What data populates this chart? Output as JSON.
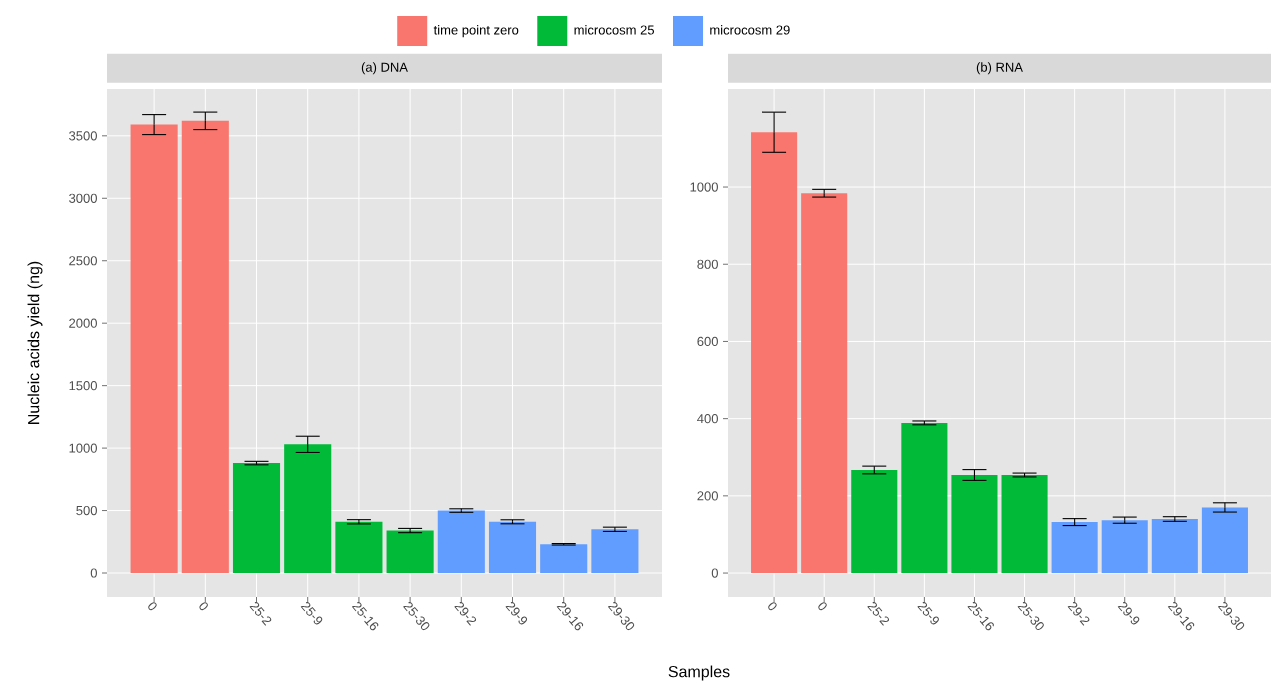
{
  "chart_data": [
    {
      "type": "bar",
      "title": "(a) DNA",
      "xlabel": "Samples",
      "ylabel": "Nucleic acids yield (ng)",
      "legend": "top",
      "grid": true,
      "categories": [
        "0",
        "0",
        "25-2",
        "25-9",
        "25-16",
        "25-30",
        "29-2",
        "29-9",
        "29-16",
        "29-30"
      ],
      "ylim": [
        -192,
        3875
      ],
      "yticks": [
        0,
        500,
        1000,
        1500,
        2000,
        2500,
        3000,
        3500
      ],
      "series": [
        {
          "name": "time point zero",
          "color": "#f8766d",
          "values": [
            3590,
            3620,
            null,
            null,
            null,
            null,
            null,
            null,
            null,
            null
          ],
          "errors": [
            80,
            70,
            null,
            null,
            null,
            null,
            null,
            null,
            null,
            null
          ]
        },
        {
          "name": "microcosm 25",
          "color": "#00ba38",
          "values": [
            null,
            null,
            880,
            1030,
            410,
            340,
            null,
            null,
            null,
            null
          ],
          "errors": [
            null,
            null,
            14,
            65,
            17,
            17,
            null,
            null,
            null,
            null
          ]
        },
        {
          "name": "microcosm 29",
          "color": "#619cff",
          "values": [
            null,
            null,
            null,
            null,
            null,
            null,
            500,
            410,
            230,
            350
          ],
          "errors": [
            null,
            null,
            null,
            null,
            null,
            null,
            14,
            16,
            6,
            17
          ]
        }
      ]
    },
    {
      "type": "bar",
      "title": "(b) RNA",
      "grid": true,
      "categories": [
        "0",
        "0",
        "25-2",
        "25-9",
        "25-16",
        "25-30",
        "29-2",
        "29-9",
        "29-16",
        "29-30"
      ],
      "ylim": [
        -62,
        1254
      ],
      "yticks": [
        0,
        200,
        400,
        600,
        800,
        1000
      ],
      "series": [
        {
          "color": "#f8766d",
          "values": [
            1142,
            984,
            null,
            null,
            null,
            null,
            null,
            null,
            null,
            null
          ],
          "errors": [
            52,
            10,
            null,
            null,
            null,
            null,
            null,
            null,
            null,
            null
          ]
        },
        {
          "color": "#00ba38",
          "values": [
            null,
            null,
            267,
            389,
            254,
            254,
            null,
            null,
            null,
            null
          ],
          "errors": [
            null,
            null,
            10,
            5,
            14,
            5,
            null,
            null,
            null,
            null
          ]
        },
        {
          "color": "#619cff",
          "values": [
            null,
            null,
            null,
            null,
            null,
            null,
            132,
            137,
            140,
            170
          ],
          "errors": [
            null,
            null,
            null,
            null,
            null,
            null,
            9,
            8,
            6,
            12
          ]
        }
      ]
    }
  ]
}
